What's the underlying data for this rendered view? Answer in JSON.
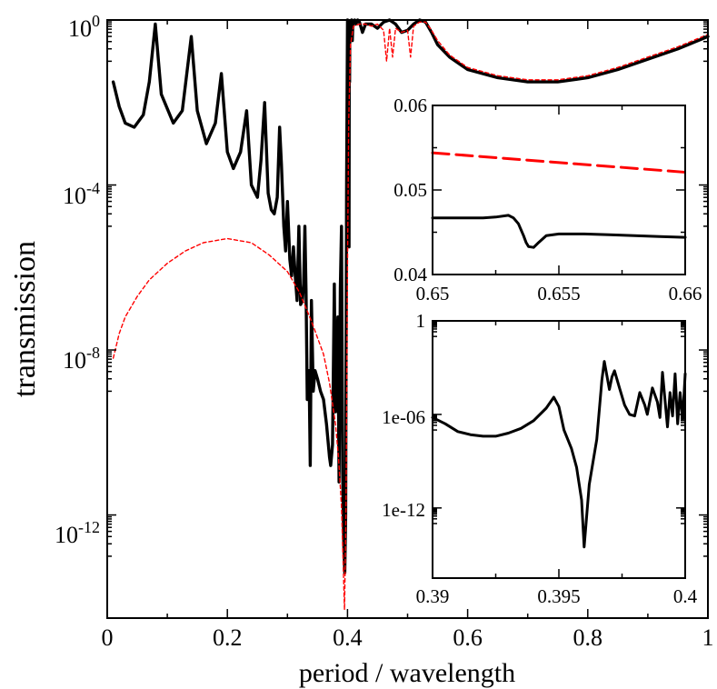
{
  "chart_data": [
    {
      "id": "main",
      "type": "line",
      "title": "",
      "xlabel": "period / wavelength",
      "ylabel": "transmission",
      "xlim": [
        0,
        1
      ],
      "ylim_log10": [
        -14.5,
        0
      ],
      "yscale": "log",
      "grid": false,
      "legend": "none",
      "x_ticks": [
        {
          "value": 0,
          "label": "0"
        },
        {
          "value": 0.2,
          "label": "0.2"
        },
        {
          "value": 0.4,
          "label": "0.4"
        },
        {
          "value": 0.6,
          "label": "0.6"
        },
        {
          "value": 0.8,
          "label": "0.8"
        },
        {
          "value": 1,
          "label": "1"
        }
      ],
      "y_ticks": [
        {
          "log": 0,
          "base": "10",
          "exp": "0"
        },
        {
          "log": -4,
          "base": "10",
          "exp": "-4"
        },
        {
          "log": -8,
          "base": "10",
          "exp": "-8"
        },
        {
          "log": -12,
          "base": "10",
          "exp": "-12"
        }
      ],
      "series": [
        {
          "name": "solid",
          "color": "#000000",
          "style": "solid",
          "x": [
            0.01,
            0.02,
            0.03,
            0.045,
            0.06,
            0.07,
            0.08,
            0.09,
            0.11,
            0.125,
            0.14,
            0.15,
            0.165,
            0.18,
            0.19,
            0.2,
            0.21,
            0.222,
            0.232,
            0.24,
            0.25,
            0.256,
            0.262,
            0.268,
            0.273,
            0.278,
            0.283,
            0.287,
            0.29,
            0.294,
            0.297,
            0.3,
            0.304,
            0.307,
            0.31,
            0.313,
            0.316,
            0.319,
            0.322,
            0.325,
            0.327,
            0.329,
            0.331,
            0.333,
            0.336,
            0.338,
            0.34,
            0.343,
            0.346,
            0.35,
            0.355,
            0.36,
            0.365,
            0.37,
            0.372,
            0.375,
            0.378,
            0.38,
            0.382,
            0.384,
            0.386,
            0.388,
            0.39,
            0.392,
            0.394,
            0.3955,
            0.397,
            0.3985,
            0.4,
            0.401,
            0.402,
            0.4025,
            0.403,
            0.4035,
            0.404,
            0.405,
            0.406,
            0.407,
            0.408,
            0.409,
            0.41,
            0.412,
            0.414,
            0.417,
            0.42,
            0.425,
            0.43,
            0.44,
            0.45,
            0.46,
            0.47,
            0.48,
            0.49,
            0.5,
            0.51,
            0.52,
            0.53,
            0.54,
            0.55,
            0.57,
            0.6,
            0.65,
            0.7,
            0.75,
            0.8,
            0.85,
            0.9,
            0.95,
            1.0
          ],
          "log_y": [
            -1.5,
            -2.1,
            -2.5,
            -2.6,
            -2.3,
            -1.5,
            -0.1,
            -1.8,
            -2.5,
            -2.2,
            -0.4,
            -2.2,
            -3.0,
            -2.5,
            -1.3,
            -3.2,
            -3.6,
            -3.2,
            -2.2,
            -4.0,
            -4.3,
            -3.4,
            -2.0,
            -4.2,
            -4.6,
            -4.7,
            -4.3,
            -2.6,
            -3.5,
            -5.0,
            -5.6,
            -4.4,
            -5.8,
            -6.2,
            -5.5,
            -6.2,
            -6.8,
            -5.0,
            -6.9,
            -6.8,
            -6.4,
            -5.0,
            -6.6,
            -9.2,
            -8.5,
            -10.8,
            -6.8,
            -9.0,
            -8.5,
            -8.7,
            -9.0,
            -9.2,
            -9.8,
            -10.6,
            -10.8,
            -10.3,
            -6.4,
            -9.5,
            -8.2,
            -7.2,
            -11.2,
            -6.5,
            -5.0,
            -11.0,
            -12.8,
            -13.4,
            -12.0,
            -4.0,
            0.0,
            -2.0,
            -0.1,
            -5.5,
            -0.05,
            -1.5,
            -0.1,
            -0.3,
            -0.15,
            0.0,
            -0.5,
            -0.1,
            -0.05,
            0.0,
            -0.1,
            0.0,
            -0.05,
            -0.3,
            -0.1,
            -0.1,
            -0.2,
            -0.05,
            0.0,
            -0.1,
            -0.3,
            -0.25,
            -0.1,
            0.0,
            -0.05,
            -0.3,
            -0.6,
            -0.9,
            -1.2,
            -1.4,
            -1.5,
            -1.5,
            -1.4,
            -1.2,
            -0.95,
            -0.7,
            -0.4
          ]
        },
        {
          "name": "dashed",
          "color": "#ff0000",
          "style": "dashed",
          "x": [
            0.01,
            0.02,
            0.03,
            0.05,
            0.07,
            0.1,
            0.13,
            0.16,
            0.2,
            0.24,
            0.27,
            0.3,
            0.32,
            0.34,
            0.36,
            0.37,
            0.38,
            0.385,
            0.39,
            0.3925,
            0.395,
            0.3975,
            0.4,
            0.402,
            0.405,
            0.41,
            0.42,
            0.43,
            0.44,
            0.45,
            0.46,
            0.465,
            0.47,
            0.475,
            0.48,
            0.49,
            0.5,
            0.505,
            0.51,
            0.52,
            0.53,
            0.54,
            0.55,
            0.57,
            0.6,
            0.65,
            0.7,
            0.75,
            0.8,
            0.85,
            0.9,
            0.95,
            1.0
          ],
          "log_y": [
            -8.2,
            -7.6,
            -7.2,
            -6.7,
            -6.3,
            -5.9,
            -5.6,
            -5.4,
            -5.3,
            -5.4,
            -5.7,
            -6.1,
            -6.6,
            -7.3,
            -8.1,
            -8.8,
            -9.8,
            -10.6,
            -11.8,
            -13.0,
            -14.3,
            -12.0,
            -6.0,
            -2.5,
            -0.6,
            -0.15,
            -0.1,
            -0.1,
            -0.15,
            -0.1,
            -0.25,
            -1.0,
            -0.2,
            -0.9,
            -0.2,
            -0.3,
            -0.25,
            -0.9,
            -0.15,
            -0.05,
            -0.05,
            -0.25,
            -0.5,
            -0.85,
            -1.15,
            -1.35,
            -1.45,
            -1.45,
            -1.35,
            -1.15,
            -0.9,
            -0.65,
            -0.35
          ]
        }
      ]
    },
    {
      "id": "inset_top",
      "type": "line",
      "title": "",
      "xlabel": "",
      "ylabel": "",
      "xlim": [
        0.65,
        0.66
      ],
      "ylim": [
        0.04,
        0.06
      ],
      "grid": false,
      "legend": "none",
      "x_ticks": [
        {
          "value": 0.65,
          "label": "0.65"
        },
        {
          "value": 0.655,
          "label": "0.655"
        },
        {
          "value": 0.66,
          "label": "0.66"
        }
      ],
      "y_ticks": [
        {
          "value": 0.04,
          "label": "0.04"
        },
        {
          "value": 0.05,
          "label": "0.05"
        },
        {
          "value": 0.06,
          "label": "0.06"
        }
      ],
      "series": [
        {
          "name": "solid",
          "color": "#000000",
          "style": "solid",
          "x": [
            0.65,
            0.651,
            0.652,
            0.6525,
            0.653,
            0.6532,
            0.6534,
            0.6536,
            0.6537,
            0.6538,
            0.654,
            0.6542,
            0.6545,
            0.655,
            0.656,
            0.657,
            0.658,
            0.659,
            0.66
          ],
          "y": [
            0.0467,
            0.0467,
            0.0467,
            0.0468,
            0.047,
            0.0467,
            0.046,
            0.0446,
            0.0438,
            0.0433,
            0.0432,
            0.0438,
            0.0446,
            0.0448,
            0.0448,
            0.0447,
            0.0446,
            0.0445,
            0.0444
          ]
        },
        {
          "name": "dashed",
          "color": "#ff0000",
          "style": "dashed",
          "x": [
            0.65,
            0.66
          ],
          "y": [
            0.0544,
            0.0521
          ]
        }
      ]
    },
    {
      "id": "inset_bottom",
      "type": "line",
      "title": "",
      "xlabel": "",
      "ylabel": "",
      "xlim": [
        0.39,
        0.4
      ],
      "ylim_log10": [
        -16.5,
        0
      ],
      "yscale": "log",
      "grid": false,
      "legend": "none",
      "x_ticks": [
        {
          "value": 0.39,
          "label": "0.39"
        },
        {
          "value": 0.395,
          "label": "0.395"
        },
        {
          "value": 0.4,
          "label": "0.4"
        }
      ],
      "y_ticks": [
        {
          "log": 0,
          "label": "1"
        },
        {
          "log": -6,
          "label": "1e-06"
        },
        {
          "log": -12,
          "label": "1e-12"
        }
      ],
      "series": [
        {
          "name": "solid",
          "color": "#000000",
          "style": "solid",
          "x": [
            0.39,
            0.3905,
            0.391,
            0.3915,
            0.392,
            0.3925,
            0.393,
            0.3935,
            0.394,
            0.3945,
            0.3948,
            0.395,
            0.3952,
            0.3955,
            0.3957,
            0.3959,
            0.396,
            0.3962,
            0.3965,
            0.3967,
            0.3968,
            0.397,
            0.3971,
            0.3972,
            0.3974,
            0.3976,
            0.3978,
            0.398,
            0.3982,
            0.3984,
            0.3985,
            0.3987,
            0.3989,
            0.399,
            0.3991,
            0.3993,
            0.3994,
            0.3995,
            0.3996,
            0.3997,
            0.3998,
            0.3999,
            0.4
          ],
          "y_log10": [
            -6.2,
            -6.6,
            -7.1,
            -7.3,
            -7.4,
            -7.4,
            -7.2,
            -6.9,
            -6.4,
            -5.6,
            -4.9,
            -5.5,
            -7.0,
            -8.2,
            -9.4,
            -11.5,
            -14.5,
            -10.5,
            -7.6,
            -3.8,
            -2.6,
            -4.4,
            -3.6,
            -3.2,
            -4.3,
            -5.4,
            -6.0,
            -6.1,
            -4.6,
            -5.4,
            -6.0,
            -4.3,
            -5.2,
            -6.2,
            -3.3,
            -6.8,
            -4.6,
            -6.1,
            -3.4,
            -6.6,
            -4.6,
            -6.3,
            -3.4
          ]
        }
      ]
    }
  ]
}
